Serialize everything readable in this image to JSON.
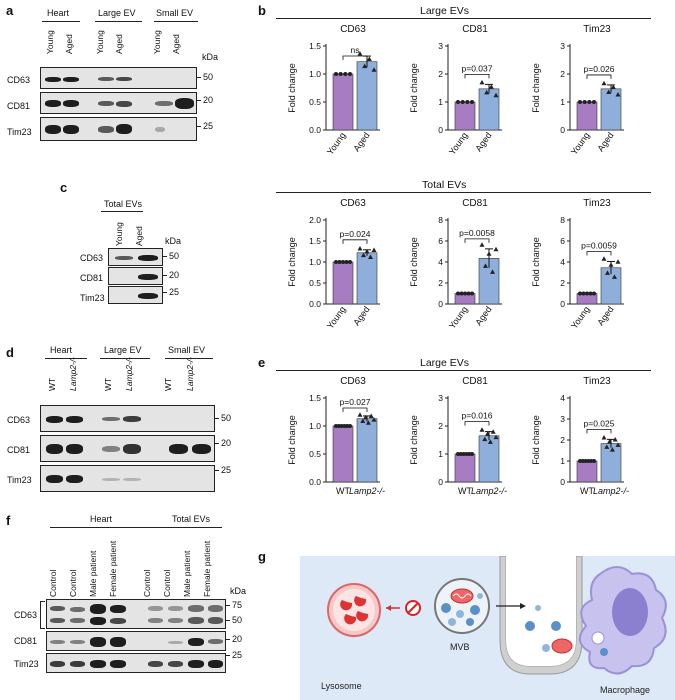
{
  "panels": {
    "a": "a",
    "b": "b",
    "c": "c",
    "d": "d",
    "e": "e",
    "f": "f",
    "g": "g"
  },
  "blot_a": {
    "groups": [
      "Heart",
      "Large EV",
      "Small EV"
    ],
    "lanes": [
      "Young",
      "Aged",
      "Young",
      "Aged",
      "Young",
      "Aged"
    ],
    "rows": [
      "CD63",
      "CD81",
      "Tim23"
    ],
    "markers": [
      "50",
      "20",
      "25"
    ],
    "unit": "kDa"
  },
  "blot_c": {
    "group": "Total EVs",
    "lanes": [
      "Young",
      "Aged"
    ],
    "rows": [
      "CD63",
      "CD81",
      "Tim23"
    ],
    "markers": [
      "50",
      "20",
      "25"
    ],
    "unit": "kDa"
  },
  "blot_d": {
    "groups": [
      "Heart",
      "Large EV",
      "Small EV"
    ],
    "lanes": [
      "WT",
      "Lamp2-/-",
      "WT",
      "Lamp2-/-",
      "WT",
      "Lamp2-/-"
    ],
    "rows": [
      "CD63",
      "CD81",
      "Tim23"
    ],
    "markers": [
      "50",
      "20",
      "25"
    ]
  },
  "blot_f": {
    "groups": [
      "Heart",
      "Total EVs"
    ],
    "lanes": [
      "Control",
      "Control",
      "Male patient",
      "Female patient",
      "Control",
      "Control",
      "Male patient",
      "Female patient"
    ],
    "rows": [
      "CD63",
      "CD81",
      "Tim23"
    ],
    "markers": [
      "75",
      "50",
      "20",
      "25"
    ],
    "unit": "kDa"
  },
  "panel_b_large_header": "Large EVs",
  "panel_b_total_header": "Total EVs",
  "panel_e_header": "Large EVs",
  "ylabel": "Fold change",
  "chart_data": [
    {
      "id": "b1",
      "type": "bar",
      "title": "CD63",
      "categories": [
        "Young",
        "Aged"
      ],
      "values": [
        1.0,
        1.22
      ],
      "errors": [
        0,
        0.1
      ],
      "ylim": [
        0,
        1.5
      ],
      "yticks": [
        "0.0",
        "0.5",
        "1.0",
        "1.5"
      ],
      "stat": "ns",
      "n": 4
    },
    {
      "id": "b2",
      "type": "bar",
      "title": "CD81",
      "categories": [
        "Young",
        "Aged"
      ],
      "values": [
        1.0,
        1.47
      ],
      "errors": [
        0,
        0.16
      ],
      "ylim": [
        0,
        3
      ],
      "yticks": [
        "0",
        "1",
        "2",
        "3"
      ],
      "stat": "p=0.037",
      "n": 4
    },
    {
      "id": "b3",
      "type": "bar",
      "title": "Tim23",
      "categories": [
        "Young",
        "Aged"
      ],
      "values": [
        1.0,
        1.47
      ],
      "errors": [
        0,
        0.14
      ],
      "ylim": [
        0,
        3
      ],
      "yticks": [
        "0",
        "1",
        "2",
        "3"
      ],
      "stat": "p=0.026",
      "n": 4
    },
    {
      "id": "b4",
      "type": "bar",
      "title": "CD63",
      "categories": [
        "Young",
        "Aged"
      ],
      "values": [
        1.0,
        1.22
      ],
      "errors": [
        0,
        0.07
      ],
      "ylim": [
        0,
        2.0
      ],
      "yticks": [
        "0.0",
        "0.5",
        "1.0",
        "1.5",
        "2.0"
      ],
      "stat": "p=0.024",
      "n": 5
    },
    {
      "id": "b5",
      "type": "bar",
      "title": "CD81",
      "categories": [
        "Young",
        "Aged"
      ],
      "values": [
        1.0,
        4.35
      ],
      "errors": [
        0,
        0.9
      ],
      "ylim": [
        0,
        8
      ],
      "yticks": [
        "0",
        "2",
        "4",
        "6",
        "8"
      ],
      "stat": "p=0.0058",
      "n": 5
    },
    {
      "id": "b6",
      "type": "bar",
      "title": "Tim23",
      "categories": [
        "Young",
        "Aged"
      ],
      "values": [
        1.0,
        3.45
      ],
      "errors": [
        0,
        0.6
      ],
      "ylim": [
        0,
        8
      ],
      "yticks": [
        "0",
        "2",
        "4",
        "6",
        "8"
      ],
      "stat": "p=0.0059",
      "n": 5
    },
    {
      "id": "e1",
      "type": "bar",
      "title": "CD63",
      "categories": [
        "WT",
        "Lamp2-/-"
      ],
      "values": [
        1.0,
        1.13
      ],
      "errors": [
        0,
        0.05
      ],
      "ylim": [
        0,
        1.5
      ],
      "yticks": [
        "0.0",
        "0.5",
        "1.0",
        "1.5"
      ],
      "stat": "p=0.027",
      "n": 6
    },
    {
      "id": "e2",
      "type": "bar",
      "title": "CD81",
      "categories": [
        "WT",
        "Lamp2-/-"
      ],
      "values": [
        1.0,
        1.65
      ],
      "errors": [
        0,
        0.15
      ],
      "ylim": [
        0,
        3
      ],
      "yticks": [
        "0",
        "1",
        "2",
        "3"
      ],
      "stat": "p=0.016",
      "n": 6
    },
    {
      "id": "e3",
      "type": "bar",
      "title": "Tim23",
      "categories": [
        "WT",
        "Lamp2-/-"
      ],
      "values": [
        1.0,
        1.83
      ],
      "errors": [
        0,
        0.2
      ],
      "ylim": [
        0,
        4
      ],
      "yticks": [
        "0",
        "1",
        "2",
        "3",
        "4"
      ],
      "stat": "p=0.025",
      "n": 6
    }
  ],
  "colors": {
    "bar1": "#a77cc3",
    "bar2": "#8eaedb"
  },
  "diagram_g": {
    "lysosome": "Lysosome",
    "mvb": "MVB",
    "macrophage": "Macrophage"
  }
}
